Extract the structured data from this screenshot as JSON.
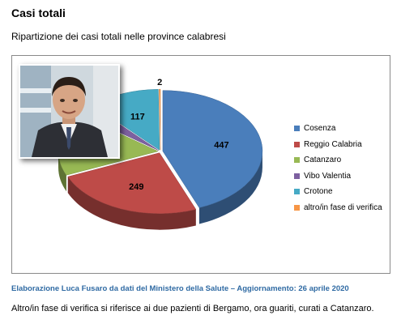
{
  "header": {
    "title": "Casi totali",
    "subtitle": "Ripartizione dei casi totali nelle province calabresi"
  },
  "chart_data": {
    "type": "pie",
    "style": "3d-exploded",
    "title": "",
    "legend_position": "right",
    "slices": [
      {
        "label": "Cosenza",
        "value": 447,
        "color": "#4a7ebb"
      },
      {
        "label": "Reggio Calabria",
        "value": 249,
        "color": "#be4b48"
      },
      {
        "label": "Catanzaro",
        "value": 170,
        "color": "#98b954"
      },
      {
        "label": "Vibo Valentia",
        "value": 30,
        "color": "#7d60a0"
      },
      {
        "label": "Crotone",
        "value": 117,
        "color": "#46aac5"
      },
      {
        "label": "altro/in fase di verifica",
        "value": 2,
        "color": "#f79646"
      }
    ],
    "data_labels": [
      {
        "slice": 0,
        "text": "447"
      },
      {
        "slice": 1,
        "text": "249"
      },
      {
        "slice": 4,
        "text": "117"
      },
      {
        "slice": 5,
        "text": "2"
      }
    ]
  },
  "footer": {
    "source": "Elaborazione  Luca Fusaro da dati del Ministero della Salute – Aggiornamento: 26 aprile 2020",
    "note": "Altro/in fase di verifica si riferisce ai due pazienti di Bergamo, ora guariti, curati a Catanzaro."
  }
}
